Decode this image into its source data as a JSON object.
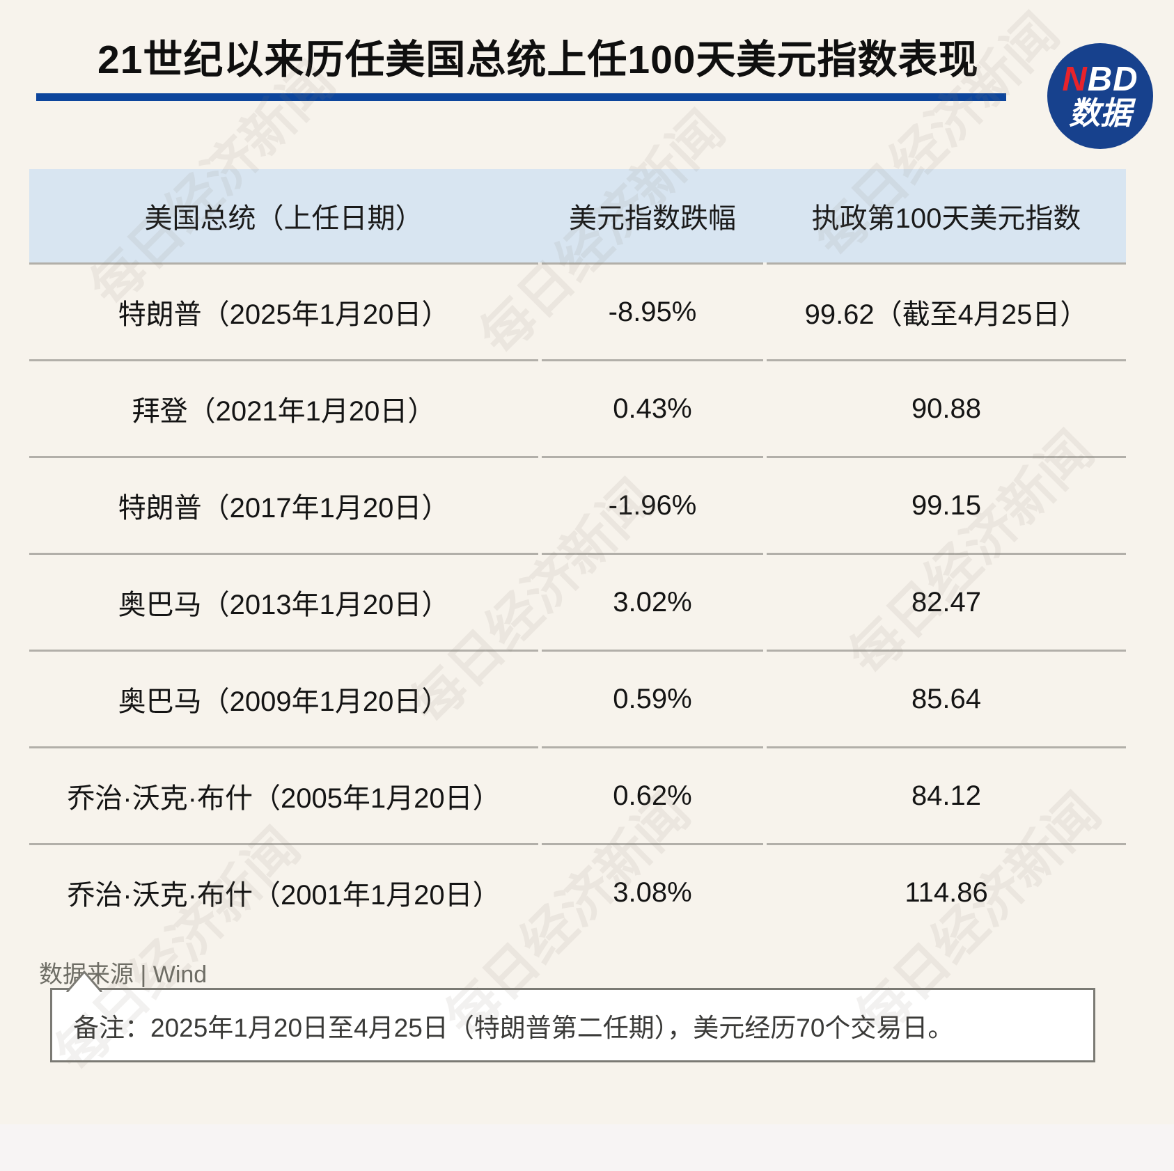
{
  "chart_data": {
    "type": "table",
    "title": "21世纪以来历任美国总统上任100天美元指数表现",
    "columns": [
      "美国总统（上任日期）",
      "美元指数跌幅",
      "执政第100天美元指数"
    ],
    "rows": [
      [
        "特朗普（2025年1月20日）",
        "-8.95%",
        "99.62（截至4月25日）"
      ],
      [
        "拜登（2021年1月20日）",
        "0.43%",
        "90.88"
      ],
      [
        "特朗普（2017年1月20日）",
        "-1.96%",
        "99.15"
      ],
      [
        "奥巴马（2013年1月20日）",
        "3.02%",
        "82.47"
      ],
      [
        "奥巴马（2009年1月20日）",
        "0.59%",
        "85.64"
      ],
      [
        "乔治·沃克·布什（2005年1月20日）",
        "0.62%",
        "84.12"
      ],
      [
        "乔治·沃克·布什（2001年1月20日）",
        "3.08%",
        "114.86"
      ]
    ],
    "numeric": {
      "dollar_index_change_pct": [
        -8.95,
        0.43,
        -1.96,
        3.02,
        0.59,
        0.62,
        3.08
      ],
      "dollar_index_day100": [
        99.62,
        90.88,
        99.15,
        82.47,
        85.64,
        84.12,
        114.86
      ]
    }
  },
  "logo": {
    "n": "N",
    "bd": "BD",
    "sub": "数据"
  },
  "footer": {
    "source": "数据来源 | Wind",
    "note": "备注：2025年1月20日至4月25日（特朗普第二任期），美元经历70个交易日。"
  },
  "watermark": {
    "text": "每日经济新闻"
  },
  "colors": {
    "page_bg": "#f7f3ec",
    "accent_blue": "#0d459c",
    "header_bg": "#d8e5f1",
    "logo_blue": "#17418d",
    "logo_red": "#e8232b",
    "divider_gray": "#b2afa9"
  }
}
